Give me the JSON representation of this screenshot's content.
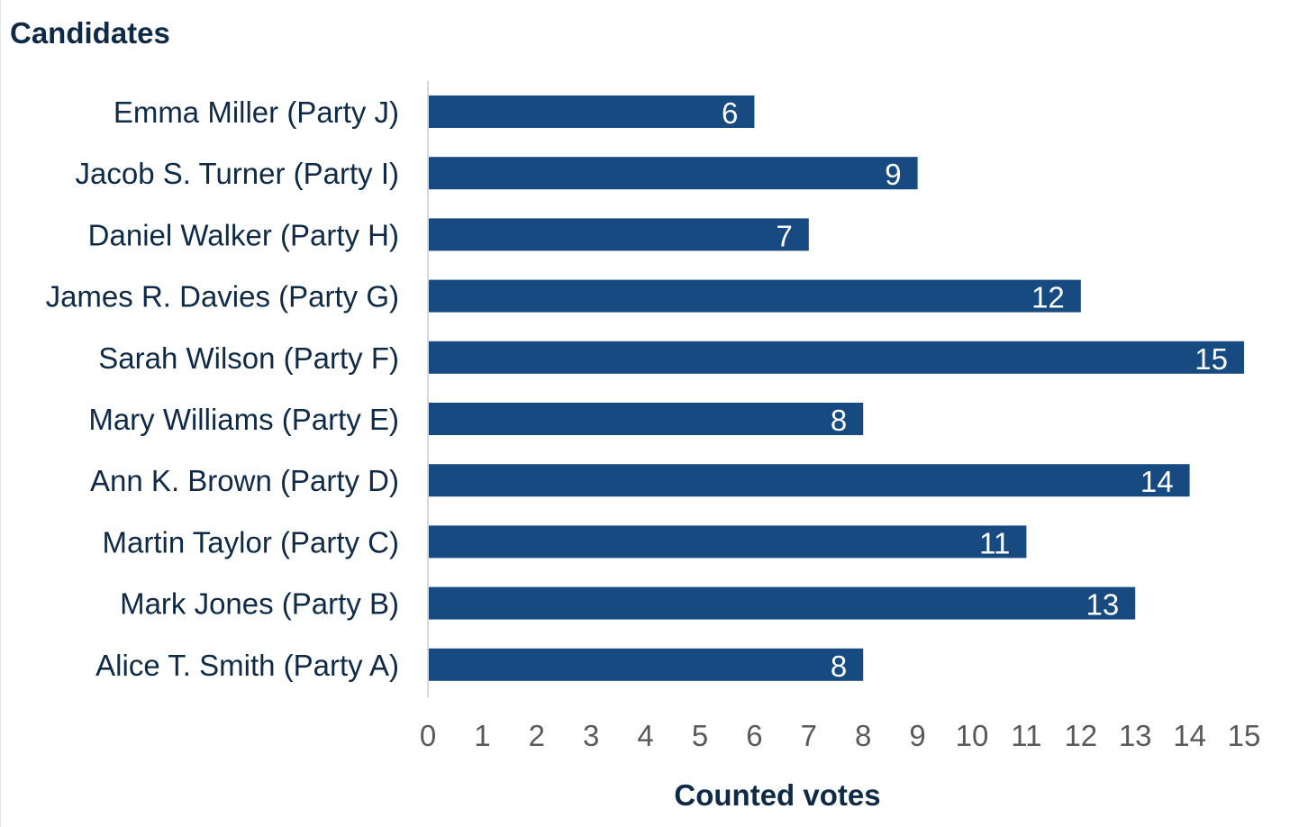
{
  "chart_data": {
    "type": "bar",
    "orientation": "horizontal",
    "title": "",
    "ylabel": "Candidates",
    "xlabel": "Counted votes",
    "categories": [
      "Emma Miller (Party J)",
      "Jacob S. Turner (Party I)",
      "Daniel Walker (Party H)",
      "James R. Davies (Party G)",
      "Sarah Wilson (Party F)",
      "Mary Williams (Party E)",
      "Ann K. Brown (Party D)",
      "Martin Taylor (Party C)",
      "Mark Jones (Party B)",
      "Alice T. Smith (Party A)"
    ],
    "values": [
      6,
      9,
      7,
      12,
      15,
      8,
      14,
      11,
      13,
      8
    ],
    "xlim": [
      0,
      15
    ],
    "xticks": [
      "0",
      "1",
      "2",
      "3",
      "4",
      "5",
      "6",
      "7",
      "8",
      "9",
      "10",
      "11",
      "12",
      "13",
      "14",
      "15"
    ],
    "data_labels": true,
    "grid": false,
    "legend": "none",
    "colors": {
      "bar": "#174a80",
      "bar_label": "#ffffff",
      "category_text": "#0f2a47",
      "tick_text": "#595959",
      "axis_line": "#d9d9d9"
    }
  }
}
